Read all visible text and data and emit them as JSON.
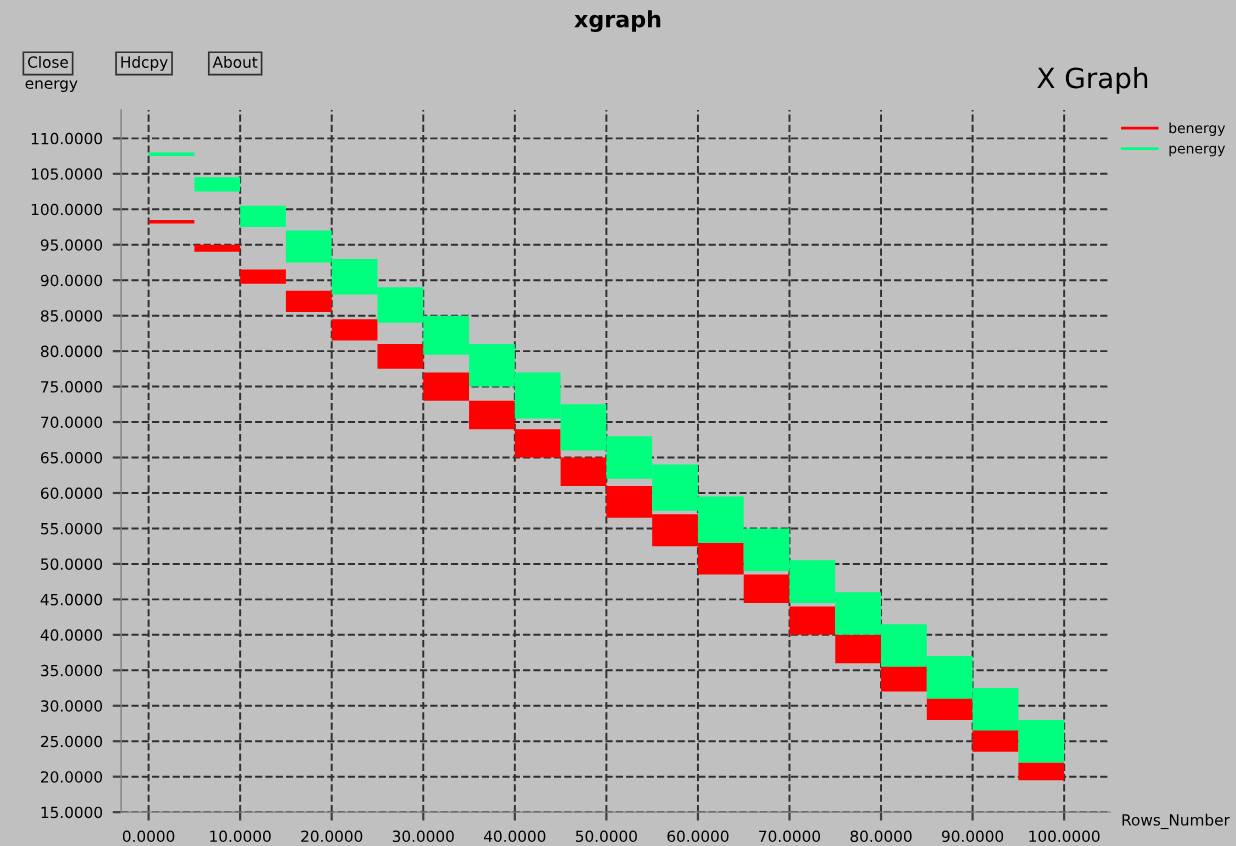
{
  "chart_data": {
    "type": "bar",
    "title": "X Graph",
    "xlabel": "Rows_Number",
    "ylabel": "energy",
    "annotations": [
      "xgraph",
      "Close",
      "Hdcpy",
      "About"
    ],
    "x": [
      5,
      10,
      15,
      20,
      25,
      30,
      35,
      40,
      45,
      50,
      55,
      60,
      65,
      70,
      75,
      80,
      85,
      90,
      95,
      100
    ],
    "series": [
      {
        "name": "benergy",
        "color": "#ff0000",
        "base": [
          98,
          94,
          89.5,
          85.5,
          81.5,
          77.5,
          73,
          69,
          65,
          61,
          56.5,
          52.5,
          48.5,
          44.5,
          40,
          36,
          32,
          28,
          23.5,
          19.5
        ],
        "values": [
          0.5,
          1,
          2,
          3,
          3,
          3.5,
          4,
          4,
          4,
          4,
          4.5,
          4.5,
          4.5,
          4,
          4,
          4,
          4,
          3.5,
          3.5,
          2.5
        ]
      },
      {
        "name": "penergy",
        "color": "#00ff7f",
        "base": [
          107.5,
          102.5,
          97.5,
          92.5,
          88,
          84,
          79.5,
          75,
          70.5,
          66,
          62,
          57.5,
          53,
          49,
          44.5,
          40,
          35.5,
          31,
          26.5,
          22
        ],
        "values": [
          0.5,
          2,
          3,
          4.5,
          5,
          5,
          5.5,
          6,
          6.5,
          6.5,
          6,
          6.5,
          6.5,
          6,
          6,
          6,
          6,
          6,
          6,
          6
        ]
      }
    ],
    "xlim": [
      -3,
      105
    ],
    "ylim": [
      15,
      114
    ],
    "xticks": [
      {
        "value": 0,
        "label": "0.0000"
      },
      {
        "value": 10,
        "label": "10.0000"
      },
      {
        "value": 20,
        "label": "20.0000"
      },
      {
        "value": 30,
        "label": "30.0000"
      },
      {
        "value": 40,
        "label": "40.0000"
      },
      {
        "value": 50,
        "label": "50.0000"
      },
      {
        "value": 60,
        "label": "60.0000"
      },
      {
        "value": 70,
        "label": "70.0000"
      },
      {
        "value": 80,
        "label": "80.0000"
      },
      {
        "value": 90,
        "label": "90.0000"
      },
      {
        "value": 100,
        "label": "100.0000"
      }
    ],
    "yticks": [
      {
        "value": 15,
        "label": "15.0000"
      },
      {
        "value": 20,
        "label": "20.0000"
      },
      {
        "value": 25,
        "label": "25.0000"
      },
      {
        "value": 30,
        "label": "30.0000"
      },
      {
        "value": 35,
        "label": "35.0000"
      },
      {
        "value": 40,
        "label": "40.0000"
      },
      {
        "value": 45,
        "label": "45.0000"
      },
      {
        "value": 50,
        "label": "50.0000"
      },
      {
        "value": 55,
        "label": "55.0000"
      },
      {
        "value": 60,
        "label": "60.0000"
      },
      {
        "value": 65,
        "label": "65.0000"
      },
      {
        "value": 70,
        "label": "70.0000"
      },
      {
        "value": 75,
        "label": "75.0000"
      },
      {
        "value": 80,
        "label": "80.0000"
      },
      {
        "value": 85,
        "label": "85.0000"
      },
      {
        "value": 90,
        "label": "90.0000"
      },
      {
        "value": 95,
        "label": "95.0000"
      },
      {
        "value": 100,
        "label": "100.0000"
      },
      {
        "value": 105,
        "label": "105.0000"
      },
      {
        "value": 110,
        "label": "110.0000"
      }
    ],
    "grid": true,
    "legend": "top right"
  }
}
